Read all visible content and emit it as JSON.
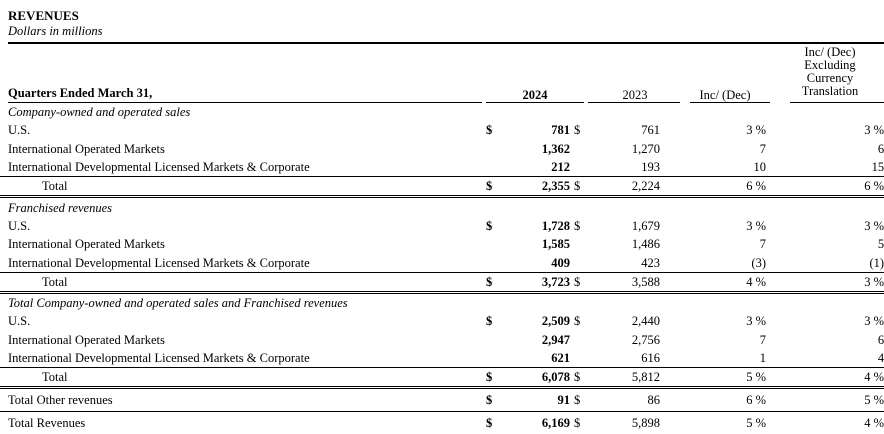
{
  "header": {
    "title": "REVENUES",
    "subtitle": "Dollars in millions",
    "period": "Quarters Ended March 31,",
    "col_2024": "2024",
    "col_2023": "2023",
    "col_inc": "Inc/ (Dec)",
    "col_excl": [
      "Inc/ (Dec)",
      "Excluding",
      "Currency",
      "Translation"
    ]
  },
  "rows": [
    {
      "type": "section",
      "label": "Company-owned and operated sales"
    },
    {
      "type": "row",
      "label": "U.S.",
      "d1": "$",
      "v2024": "781",
      "d2": "$",
      "v2023": "761",
      "inc": "3 %",
      "excl": "3 %"
    },
    {
      "type": "row",
      "label": "International Operated Markets",
      "v2024": "1,362",
      "v2023": "1,270",
      "inc": "7",
      "excl": "6"
    },
    {
      "type": "row",
      "label": "International Developmental Licensed Markets & Corporate",
      "v2024": "212",
      "v2023": "193",
      "inc": "10",
      "excl": "15"
    },
    {
      "type": "total",
      "label": "Total",
      "d1": "$",
      "v2024": "2,355",
      "d2": "$",
      "v2023": "2,224",
      "inc": "6 %",
      "excl": "6 %"
    },
    {
      "type": "section",
      "label": "Franchised revenues"
    },
    {
      "type": "row",
      "label": "U.S.",
      "d1": "$",
      "v2024": "1,728",
      "d2": "$",
      "v2023": "1,679",
      "inc": "3 %",
      "excl": "3 %"
    },
    {
      "type": "row",
      "label": "International Operated Markets",
      "v2024": "1,585",
      "v2023": "1,486",
      "inc": "7",
      "excl": "5"
    },
    {
      "type": "row",
      "label": "International Developmental Licensed Markets & Corporate",
      "v2024": "409",
      "v2023": "423",
      "inc": "(3)",
      "excl": "(1)"
    },
    {
      "type": "total",
      "label": "Total",
      "d1": "$",
      "v2024": "3,723",
      "d2": "$",
      "v2023": "3,588",
      "inc": "4 %",
      "excl": "3 %"
    },
    {
      "type": "section",
      "label": "Total Company-owned and operated sales and Franchised revenues"
    },
    {
      "type": "row",
      "label": "U.S.",
      "d1": "$",
      "v2024": "2,509",
      "d2": "$",
      "v2023": "2,440",
      "inc": "3 %",
      "excl": "3 %"
    },
    {
      "type": "row",
      "label": "International Operated Markets",
      "v2024": "2,947",
      "v2023": "2,756",
      "inc": "7",
      "excl": "6"
    },
    {
      "type": "row",
      "label": "International Developmental Licensed Markets & Corporate",
      "v2024": "621",
      "v2023": "616",
      "inc": "1",
      "excl": "4"
    },
    {
      "type": "total",
      "label": "Total",
      "d1": "$",
      "v2024": "6,078",
      "d2": "$",
      "v2023": "5,812",
      "inc": "5 %",
      "excl": "4 %"
    },
    {
      "type": "other",
      "label": "Total Other revenues",
      "d1": "$",
      "v2024": "91",
      "d2": "$",
      "v2023": "86",
      "inc": "6 %",
      "excl": "5 %"
    },
    {
      "type": "grand",
      "label": "Total Revenues",
      "d1": "$",
      "v2024": "6,169",
      "d2": "$",
      "v2023": "5,898",
      "inc": "5 %",
      "excl": "4 %"
    }
  ]
}
